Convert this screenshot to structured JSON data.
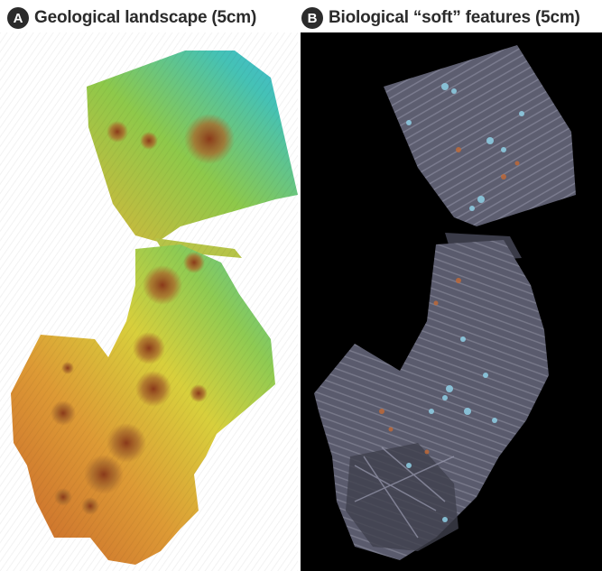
{
  "panels": [
    {
      "letter": "A",
      "title": "Geological landscape (5cm)",
      "type": "bathymetry-map"
    },
    {
      "letter": "B",
      "title": "Biological “soft” features (5cm)",
      "type": "orthomosaic-map"
    }
  ],
  "colors": {
    "badge": "#2b2b2b",
    "title": "#2b2b2b",
    "panelB_background": "#000000",
    "depth_shallow": "#c8662a",
    "depth_mid": "#d8c93a",
    "depth_deep": "#3ec3d6"
  }
}
